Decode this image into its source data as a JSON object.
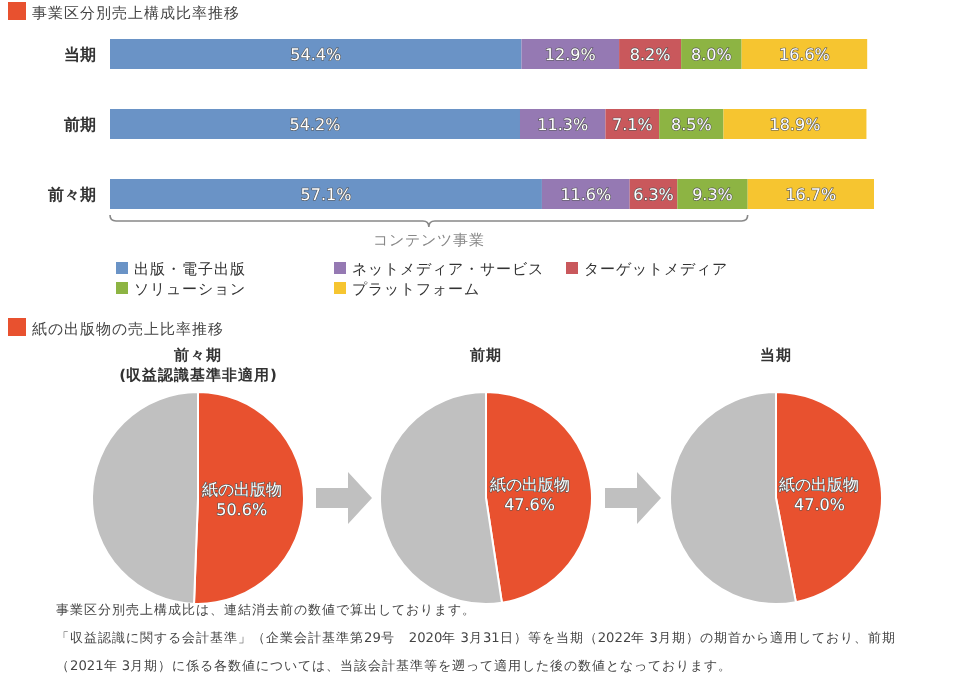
{
  "chart_data": [
    {
      "type": "bar",
      "orientation": "horizontal",
      "stacked": true,
      "title": "事業区分別売上構成比率推移",
      "categories": [
        "当期",
        "前期",
        "前々期"
      ],
      "legend": "bottom",
      "annotations": [
        "コンテンツ事業"
      ],
      "series": [
        {
          "name": "出版・電子出版",
          "color": "#6a93c6",
          "values": [
            54.4,
            54.2,
            57.1
          ],
          "value_labels": [
            "54.4%",
            "54.2%",
            "57.1%"
          ]
        },
        {
          "name": "ネットメディア・サービス",
          "color": "#9579b3",
          "values": [
            12.9,
            11.3,
            11.6
          ],
          "value_labels": [
            "12.9%",
            "11.3%",
            "11.6%"
          ]
        },
        {
          "name": "ターゲットメディア",
          "color": "#c9585c",
          "values": [
            8.2,
            7.1,
            6.3
          ],
          "value_labels": [
            "8.2%",
            "7.1%",
            "6.3%"
          ]
        },
        {
          "name": "ソリューション",
          "color": "#8db443",
          "values": [
            8.0,
            8.5,
            9.3
          ],
          "value_labels": [
            "8.0%",
            "8.5%",
            "9.3%"
          ]
        },
        {
          "name": "プラットフォーム",
          "color": "#f6c530",
          "values": [
            16.6,
            18.9,
            16.7
          ],
          "value_labels": [
            "16.6%",
            "18.9%",
            "16.7%"
          ]
        }
      ]
    },
    {
      "type": "pie",
      "title": "紙の出版物の売上比率推移",
      "subtitle": "前々期\n(収益認識基準非適用)",
      "categories": [
        "紙の出版物",
        null
      ],
      "values": [
        50.6,
        49.4
      ],
      "colors": [
        "#e8512f",
        "#c0c0c0"
      ],
      "value_labels": [
        "50.6%",
        null
      ]
    },
    {
      "type": "pie",
      "subtitle": "前期",
      "categories": [
        "紙の出版物",
        null
      ],
      "values": [
        47.6,
        52.4
      ],
      "colors": [
        "#e8512f",
        "#c0c0c0"
      ],
      "value_labels": [
        "47.6%",
        null
      ]
    },
    {
      "type": "pie",
      "subtitle": "当期",
      "categories": [
        "紙の出版物",
        null
      ],
      "values": [
        47.0,
        53.0
      ],
      "colors": [
        "#e8512f",
        "#c0c0c0"
      ],
      "value_labels": [
        "47.0%",
        null
      ],
      "annotations": [
        "事業区分別売上構成比は、連結消去前の数値で算出しております。",
        "「収益認識に関する会計基準」（企業会計基準第29号　2020年 3月31日）等を当期（2022年 3月期）の期首から適用しており、前期",
        "（2021年 3月期）に係る各数値については、当該会計基準等を遡って適用した後の数値となっております。"
      ]
    }
  ]
}
